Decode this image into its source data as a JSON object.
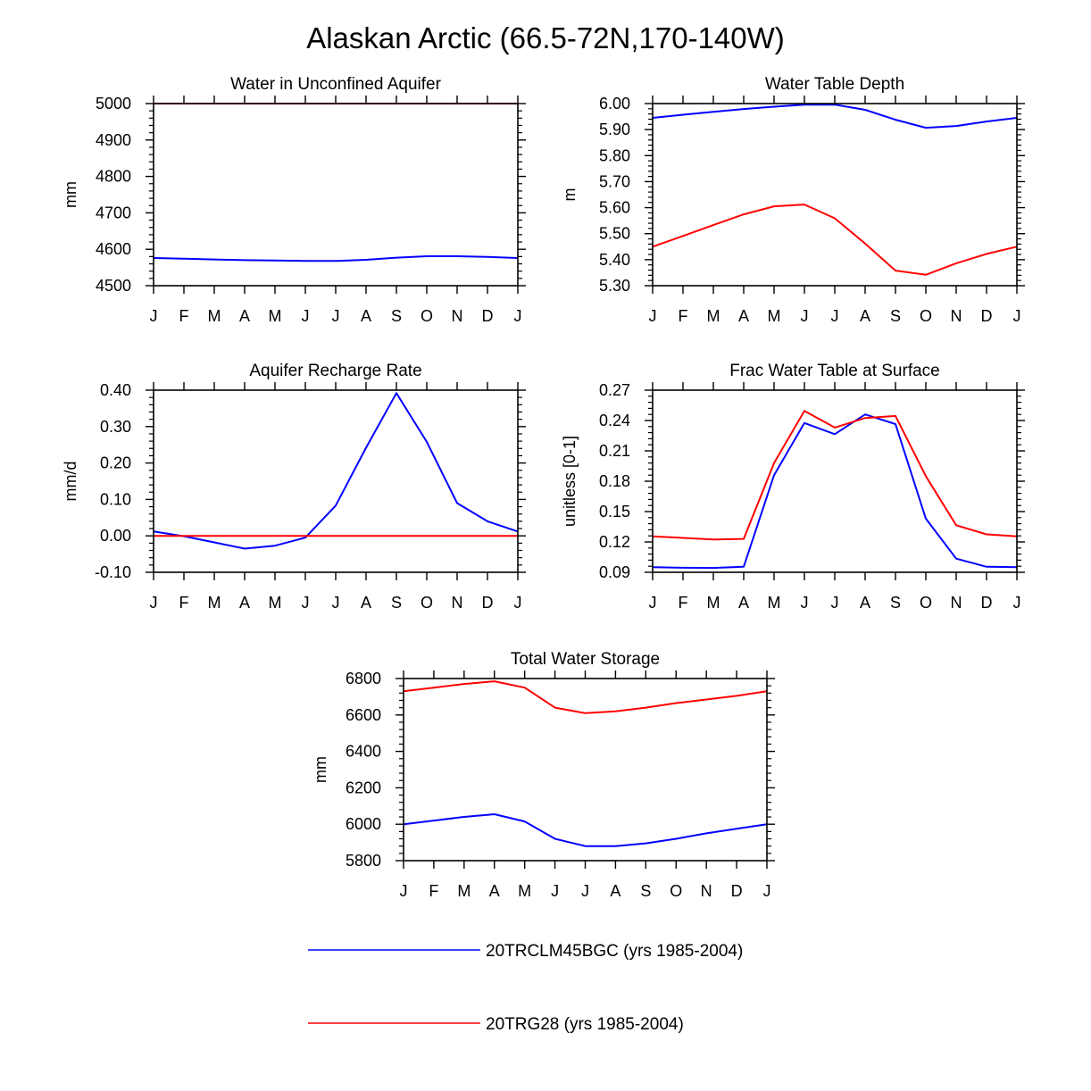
{
  "title": "Alaskan Arctic (66.5-72N,170-140W)",
  "months": [
    "J",
    "F",
    "M",
    "A",
    "M",
    "J",
    "J",
    "A",
    "S",
    "O",
    "N",
    "D",
    "J"
  ],
  "legend": [
    {
      "label": "20TRCLM45BGC (yrs 1985-2004)",
      "color": "#0000ff"
    },
    {
      "label": "20TRG28 (yrs 1985-2004)",
      "color": "#ff0000"
    }
  ],
  "chart_data": [
    {
      "type": "line",
      "title": "Water in Unconfined Aquifer",
      "ylabel": "mm",
      "ylim": [
        4500,
        5000
      ],
      "yticks": [
        "4500",
        "4600",
        "4700",
        "4800",
        "4900",
        "5000"
      ],
      "x": [
        "J",
        "F",
        "M",
        "A",
        "M",
        "J",
        "J",
        "A",
        "S",
        "O",
        "N",
        "D",
        "J"
      ],
      "series": [
        {
          "name": "20TRCLM45BGC (yrs 1985-2004)",
          "color": "#0000ff",
          "values": [
            4576,
            4574,
            4572,
            4570,
            4569,
            4568,
            4568,
            4571,
            4577,
            4581,
            4581,
            4579,
            4576
          ]
        },
        {
          "name": "20TRG28 (yrs 1985-2004)",
          "color": "#ff0000",
          "values": [
            5000,
            5000,
            5000,
            5000,
            5000,
            5000,
            5000,
            5000,
            5000,
            5000,
            5000,
            5000,
            5000
          ]
        }
      ]
    },
    {
      "type": "line",
      "title": "Water Table Depth",
      "ylabel": "m",
      "ylim": [
        5.3,
        6.0
      ],
      "yticks": [
        "5.30",
        "5.40",
        "5.50",
        "5.60",
        "5.70",
        "5.80",
        "5.90",
        "6.00"
      ],
      "x": [
        "J",
        "F",
        "M",
        "A",
        "M",
        "J",
        "J",
        "A",
        "S",
        "O",
        "N",
        "D",
        "J"
      ],
      "series": [
        {
          "name": "20TRCLM45BGC (yrs 1985-2004)",
          "color": "#0000ff",
          "values": [
            5.945,
            5.957,
            5.968,
            5.979,
            5.988,
            5.996,
            5.996,
            5.976,
            5.938,
            5.907,
            5.914,
            5.931,
            5.945
          ]
        },
        {
          "name": "20TRG28 (yrs 1985-2004)",
          "color": "#ff0000",
          "values": [
            5.45,
            5.491,
            5.533,
            5.574,
            5.605,
            5.612,
            5.559,
            5.462,
            5.358,
            5.342,
            5.386,
            5.422,
            5.45
          ]
        }
      ]
    },
    {
      "type": "line",
      "title": "Aquifer Recharge Rate",
      "ylabel": "mm/d",
      "ylim": [
        -0.1,
        0.4
      ],
      "yticks": [
        "-0.10",
        "0.00",
        "0.10",
        "0.20",
        "0.30",
        "0.40"
      ],
      "x": [
        "J",
        "F",
        "M",
        "A",
        "M",
        "J",
        "J",
        "A",
        "S",
        "O",
        "N",
        "D",
        "J"
      ],
      "series": [
        {
          "name": "20TRCLM45BGC (yrs 1985-2004)",
          "color": "#0000ff",
          "values": [
            0.012,
            -0.001,
            -0.018,
            -0.035,
            -0.027,
            -0.005,
            0.083,
            0.242,
            0.392,
            0.258,
            0.09,
            0.04,
            0.012
          ]
        },
        {
          "name": "20TRG28 (yrs 1985-2004)",
          "color": "#ff0000",
          "values": [
            0,
            0,
            0,
            0,
            0,
            0,
            0,
            0,
            0,
            0,
            0,
            0,
            0
          ]
        }
      ]
    },
    {
      "type": "line",
      "title": "Frac Water Table at Surface",
      "ylabel": "unitless [0-1]",
      "ylim": [
        0.09,
        0.27
      ],
      "yticks": [
        "0.09",
        "0.12",
        "0.15",
        "0.18",
        "0.21",
        "0.24",
        "0.27"
      ],
      "x": [
        "J",
        "F",
        "M",
        "A",
        "M",
        "J",
        "J",
        "A",
        "S",
        "O",
        "N",
        "D",
        "J"
      ],
      "series": [
        {
          "name": "20TRCLM45BGC (yrs 1985-2004)",
          "color": "#0000ff",
          "values": [
            0.095,
            0.0945,
            0.0943,
            0.0955,
            0.186,
            0.2375,
            0.2265,
            0.246,
            0.2365,
            0.143,
            0.1035,
            0.0955,
            0.095
          ]
        },
        {
          "name": "20TRG28 (yrs 1985-2004)",
          "color": "#ff0000",
          "values": [
            0.1255,
            0.124,
            0.1225,
            0.123,
            0.198,
            0.2495,
            0.233,
            0.2425,
            0.2445,
            0.185,
            0.1365,
            0.1275,
            0.1255
          ]
        }
      ]
    },
    {
      "type": "line",
      "title": "Total Water Storage",
      "ylabel": "mm",
      "ylim": [
        5800,
        6800
      ],
      "yticks": [
        "5800",
        "6000",
        "6200",
        "6400",
        "6600",
        "6800"
      ],
      "x": [
        "J",
        "F",
        "M",
        "A",
        "M",
        "J",
        "J",
        "A",
        "S",
        "O",
        "N",
        "D",
        "J"
      ],
      "series": [
        {
          "name": "20TRCLM45BGC (yrs 1985-2004)",
          "color": "#0000ff",
          "values": [
            6000,
            6020,
            6040,
            6055,
            6015,
            5920,
            5880,
            5880,
            5895,
            5920,
            5950,
            5975,
            6000
          ]
        },
        {
          "name": "20TRG28 (yrs 1985-2004)",
          "color": "#ff0000",
          "values": [
            6730,
            6750,
            6770,
            6785,
            6750,
            6640,
            6610,
            6620,
            6640,
            6665,
            6685,
            6705,
            6730
          ]
        }
      ]
    }
  ]
}
